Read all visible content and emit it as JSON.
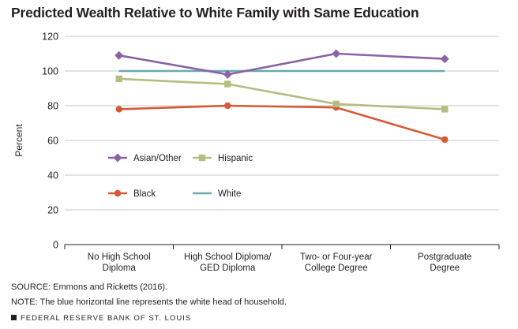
{
  "title": "Predicted Wealth Relative to White Family with Same Education",
  "chart_data": {
    "type": "line",
    "title": "Predicted Wealth Relative to White Family with Same Education",
    "xlabel": "",
    "ylabel": "Percent",
    "ylim": [
      0,
      120
    ],
    "yticks": [
      0,
      20,
      40,
      60,
      80,
      100,
      120
    ],
    "grid": true,
    "categories": [
      [
        "No High School",
        "Diploma"
      ],
      [
        "High School Diploma/",
        "GED Diploma"
      ],
      [
        "Two- or Four-year",
        "College Degree"
      ],
      [
        "Postgraduate",
        "Degree"
      ]
    ],
    "series": [
      {
        "name": "Asian/Other",
        "color": "#8a62a6",
        "marker": "diamond",
        "values": [
          109,
          98,
          110,
          107
        ]
      },
      {
        "name": "Hispanic",
        "color": "#b5bd80",
        "marker": "square",
        "values": [
          95.5,
          92.5,
          81,
          78
        ]
      },
      {
        "name": "Black",
        "color": "#d65a35",
        "marker": "circle",
        "values": [
          78,
          80,
          79,
          60.5
        ]
      },
      {
        "name": "White",
        "color": "#6aa9b0",
        "marker": "none",
        "values": [
          100,
          100,
          100,
          100
        ]
      }
    ],
    "legend": "inside-lower-left"
  },
  "notes": {
    "source": "SOURCE: Emmons and Ricketts (2016).",
    "note": "NOTE: The blue horizontal line represents the white head of household."
  },
  "footer": "FEDERAL RESERVE BANK OF ST. LOUIS"
}
